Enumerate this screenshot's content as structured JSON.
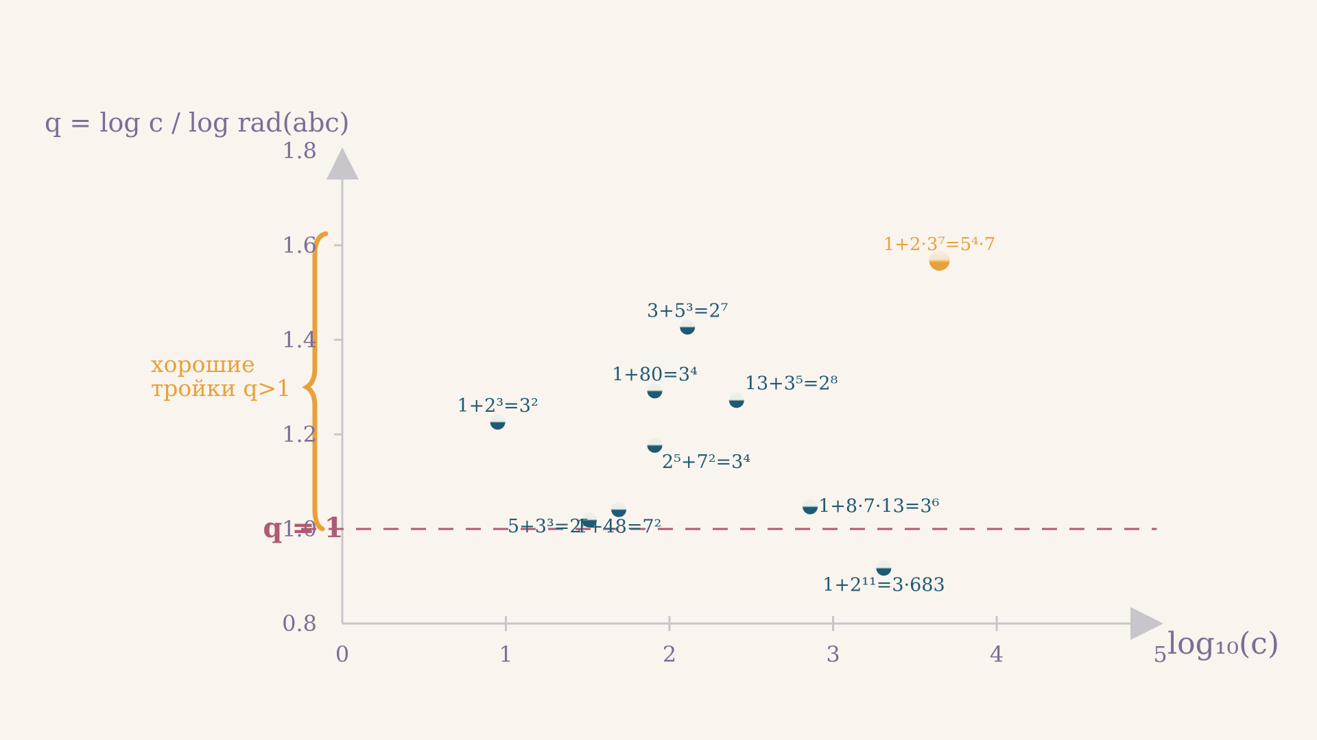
{
  "chart_data": {
    "type": "scatter",
    "ylabel": "q = log c / log rad(abc)",
    "xlabel": "log₁₀(c)",
    "xlim": [
      0,
      5
    ],
    "ylim": [
      0.8,
      1.8
    ],
    "x_ticks": [
      "0",
      "1",
      "2",
      "3",
      "4",
      "5"
    ],
    "y_ticks": [
      "0.8",
      "1.0",
      "1.2",
      "1.4",
      "1.6",
      "1.8"
    ],
    "grid": false,
    "reference_line": {
      "y": 1.0,
      "label": "q = 1"
    },
    "annotation": {
      "lines": [
        "хорошие",
        "тройки q>1"
      ],
      "y_from": 1.0,
      "y_to": 1.62
    },
    "colors": {
      "point": "#1e5a73",
      "highlight": "#e8a13a",
      "reference": "#b05a74",
      "axis": "#c9c5cb",
      "axis_text": "#7b6e96"
    },
    "points": [
      {
        "x": 0.95,
        "y": 1.226,
        "label": "1+2³=3²",
        "highlight": false
      },
      {
        "x": 1.51,
        "y": 1.019,
        "label": "5+3³=2⁵",
        "highlight": false
      },
      {
        "x": 1.69,
        "y": 1.041,
        "label": "1+48=7²",
        "highlight": false
      },
      {
        "x": 1.91,
        "y": 1.292,
        "label": "1+80=3⁴",
        "highlight": false
      },
      {
        "x": 1.91,
        "y": 1.177,
        "label": "2⁵+7²=3⁴",
        "highlight": false
      },
      {
        "x": 2.11,
        "y": 1.427,
        "label": "3+5³=2⁷",
        "highlight": false
      },
      {
        "x": 2.41,
        "y": 1.272,
        "label": "13+3⁵=2⁸",
        "highlight": false
      },
      {
        "x": 2.86,
        "y": 1.047,
        "label": "1+8·7·13=3⁶",
        "highlight": false
      },
      {
        "x": 3.31,
        "y": 0.917,
        "label": "1+2¹¹=3·683",
        "highlight": false
      },
      {
        "x": 3.65,
        "y": 1.568,
        "label": "1+2·3⁷=5⁴·7",
        "highlight": true
      }
    ]
  }
}
